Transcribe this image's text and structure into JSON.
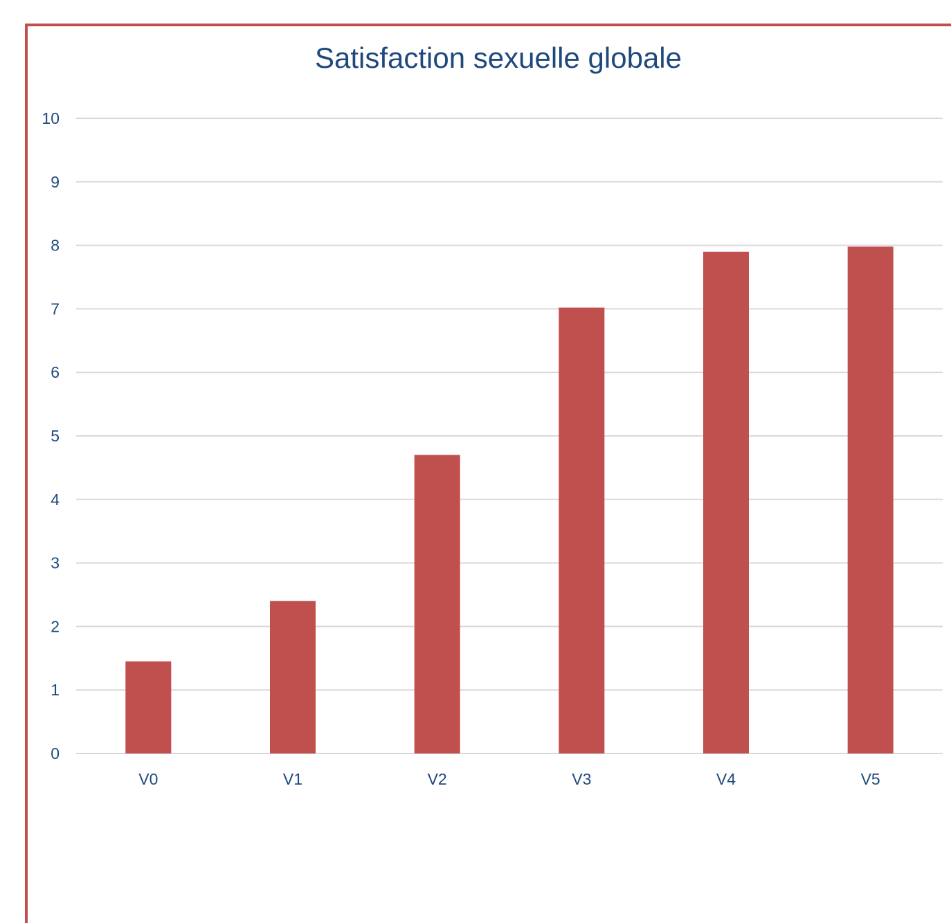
{
  "chart_data": {
    "type": "bar",
    "title": "Satisfaction sexuelle globale",
    "categories": [
      "V0",
      "V1",
      "V2",
      "V3",
      "V4",
      "V5"
    ],
    "values": [
      1.45,
      2.4,
      4.7,
      7.02,
      7.9,
      7.98
    ],
    "xlabel": "",
    "ylabel": "",
    "ylim": [
      0,
      10
    ],
    "yticks": [
      0,
      1,
      2,
      3,
      4,
      5,
      6,
      7,
      8,
      9,
      10
    ],
    "grid": true,
    "legend": "none",
    "colors": {
      "bar": "#c0504d",
      "text": "#1f497d",
      "grid": "#d9d9d9",
      "frame": "#c0504d"
    }
  }
}
